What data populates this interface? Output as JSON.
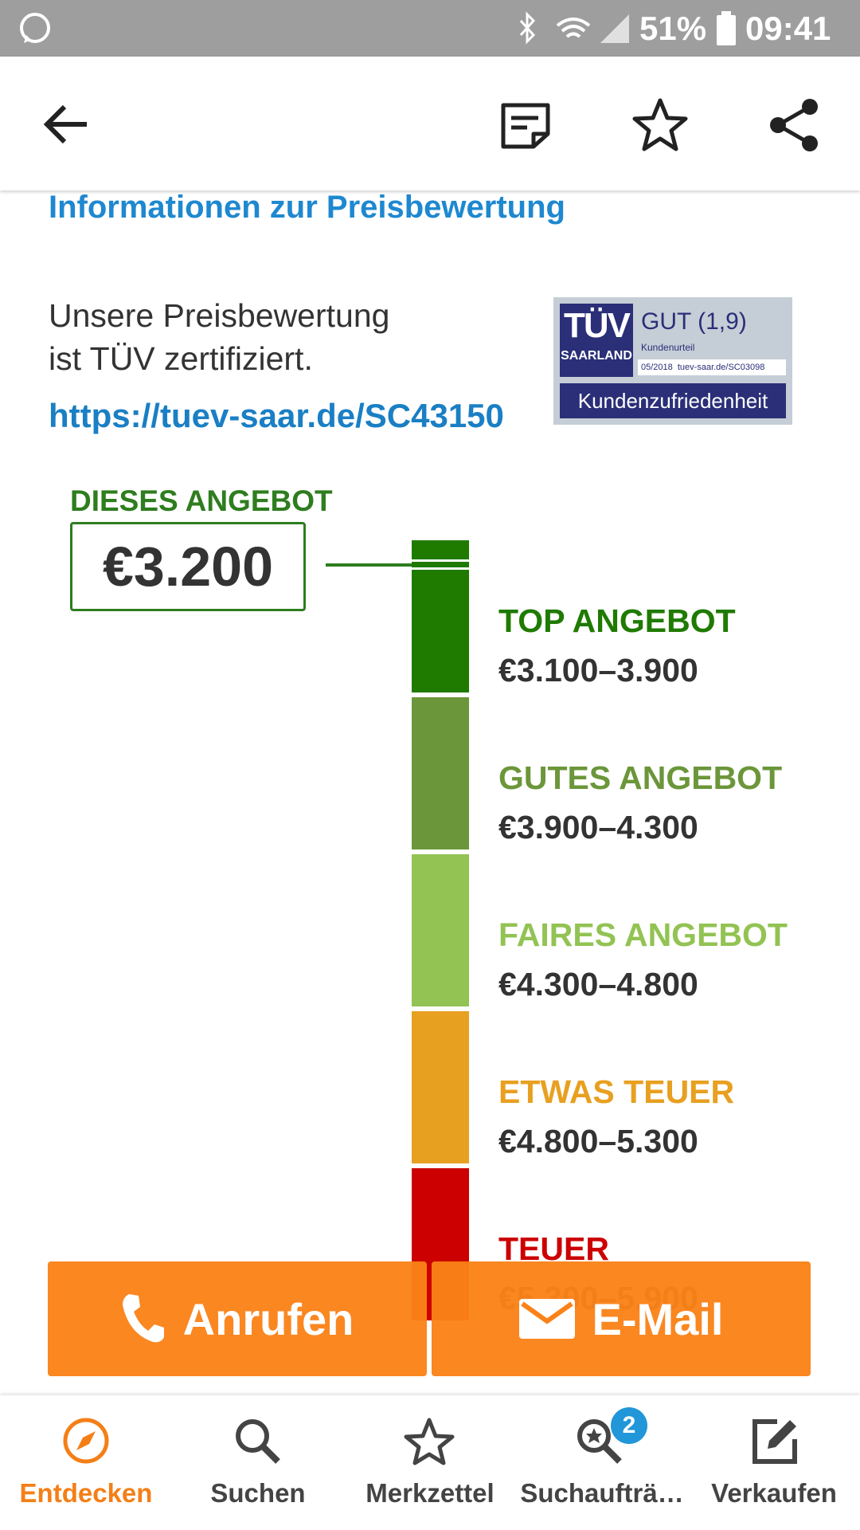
{
  "status_bar": {
    "battery": "51%",
    "time": "09:41"
  },
  "info_link": "Informationen zur Preisbewertung",
  "certification": {
    "line1": "Unsere Preisbewertung",
    "line2": "ist TÜV zertifiziert.",
    "url": "https://tuev-saar.de/SC43150",
    "badge": {
      "brand": "TÜV",
      "region": "SAARLAND",
      "rating": "GUT (1,9)",
      "rating_caption": "Kundenurteil",
      "reference": "05/2018  tuev-saar.de/SC03098",
      "category": "Kundenzufriedenheit"
    }
  },
  "this_offer": {
    "label": "DIESES ANGEBOT",
    "price": "€3.200"
  },
  "price_scale": [
    {
      "label": "TOP ANGEBOT",
      "range": "€3.100–3.900",
      "color": "#1f7a00"
    },
    {
      "label": "GUTES ANGEBOT",
      "range": "€3.900–4.300",
      "color": "#6b963a"
    },
    {
      "label": "FAIRES ANGEBOT",
      "range": "€4.300–4.800",
      "color": "#92c353"
    },
    {
      "label": "ETWAS TEUER",
      "range": "€4.800–5.300",
      "color": "#e8a020"
    },
    {
      "label": "TEUER",
      "range": "€5.300–5.900",
      "color": "#cc0000"
    }
  ],
  "actions": {
    "call": "Anrufen",
    "email": "E-Mail"
  },
  "bottom_nav": {
    "items": [
      "Entdecken",
      "Suchen",
      "Merkzettel",
      "Suchaufträ…",
      "Verkaufen"
    ],
    "active": 0,
    "badge": "2"
  }
}
